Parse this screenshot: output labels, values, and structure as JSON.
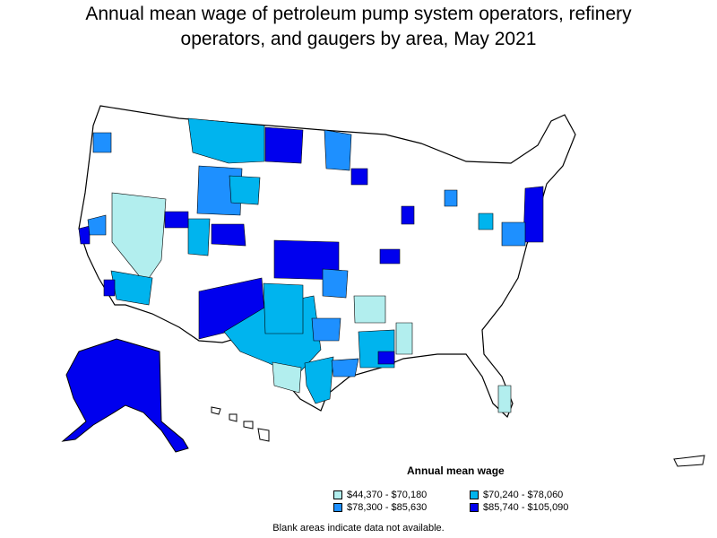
{
  "title_line1": "Annual mean wage of petroleum pump system operators, refinery",
  "title_line2": "operators, and gaugers by area, May 2021",
  "legend": {
    "title": "Annual mean wage",
    "items": [
      {
        "label": "$44,370 - $70,180",
        "color": "#b2eeee"
      },
      {
        "label": "$70,240 - $78,060",
        "color": "#00b4ee"
      },
      {
        "label": "$78,300 - $85,630",
        "color": "#1e90ff"
      },
      {
        "label": "$85,740 - $105,090",
        "color": "#0000ee"
      }
    ]
  },
  "note": "Blank areas indicate data not available."
}
